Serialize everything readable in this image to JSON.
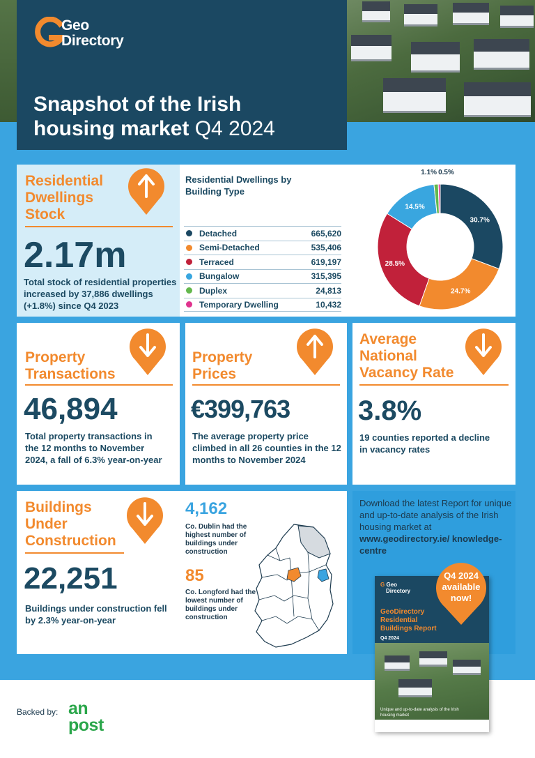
{
  "logo": {
    "line1": "Geo",
    "line2": "Directory"
  },
  "title": {
    "line1": "Snapshot of the Irish",
    "line2_bold": "housing market",
    "line2_light": "Q4 2024"
  },
  "stock": {
    "heading": "Residential Dwellings Stock",
    "value": "2.17m",
    "description": "Total stock of residential properties increased by 37,886 dwellings (+1.8%) since Q4 2023",
    "trend": "up"
  },
  "dwellings_table": {
    "title": "Residential Dwellings by Building Type",
    "rows": [
      {
        "label": "Detached",
        "value": "665,620",
        "color": "#1b4862"
      },
      {
        "label": "Semi-Detached",
        "value": "535,406",
        "color": "#f28a2e"
      },
      {
        "label": "Terraced",
        "value": "619,197",
        "color": "#c1213a"
      },
      {
        "label": "Bungalow",
        "value": "315,395",
        "color": "#39a6df"
      },
      {
        "label": "Duplex",
        "value": "24,813",
        "color": "#64b84d"
      },
      {
        "label": "Temporary Dwelling",
        "value": "10,432",
        "color": "#e0338e"
      }
    ]
  },
  "chart_data": {
    "type": "pie",
    "title": "Residential Dwellings by Building Type",
    "categories": [
      "Detached",
      "Semi-Detached",
      "Terraced",
      "Bungalow",
      "Duplex",
      "Temporary Dwelling"
    ],
    "values": [
      30.7,
      24.7,
      28.5,
      14.5,
      1.1,
      0.5
    ],
    "labels": [
      "30.7%",
      "24.7%",
      "28.5%",
      "14.5%",
      "1.1%",
      "0.5%"
    ],
    "colors": [
      "#1b4862",
      "#f28a2e",
      "#c1213a",
      "#39a6df",
      "#64b84d",
      "#e0338e"
    ],
    "donut": true
  },
  "transactions": {
    "heading": "Property Transactions",
    "value": "46,894",
    "description": "Total property transactions in the 12 months to November 2024, a fall of 6.3% year-on-year",
    "trend": "down"
  },
  "prices": {
    "heading": "Property Prices",
    "value": "€399,763",
    "description": "The average property price climbed in all 26 counties in the 12 months to November 2024",
    "trend": "up"
  },
  "vacancy": {
    "heading": "Average National Vacancy Rate",
    "value": "3.8%",
    "description": "19 counties reported a decline in vacancy rates",
    "trend": "down"
  },
  "construction": {
    "heading": "Buildings Under Construction",
    "value": "22,251",
    "description": "Buildings under construction fell by 2.3% year-on-year",
    "trend": "down",
    "dublin_value": "4,162",
    "dublin_text": "Co. Dublin had the highest number of buildings under construction",
    "longford_value": "85",
    "longford_text": "Co. Longford had the lowest number of buildings under construction"
  },
  "download": {
    "text": "Download the latest Report for unique and up-to-date analysis of the Irish housing market at",
    "url": "www.geodirectory.ie/ knowledge-centre",
    "badge": "Q4 2024 available now!",
    "report_title": "GeoDirectory Residential Buildings Report",
    "report_quarter": "Q4 2024",
    "report_subtitle": "Unique and up-to-date analysis of the Irish housing market"
  },
  "footer": {
    "backed_by": "Backed by:",
    "anpost_line1": "an",
    "anpost_line2": "post"
  },
  "colors": {
    "navy": "#1b4862",
    "orange": "#f28a2e",
    "blue": "#3aa4e0",
    "light_blue": "#d5edf8",
    "green": "#2aa64a"
  }
}
